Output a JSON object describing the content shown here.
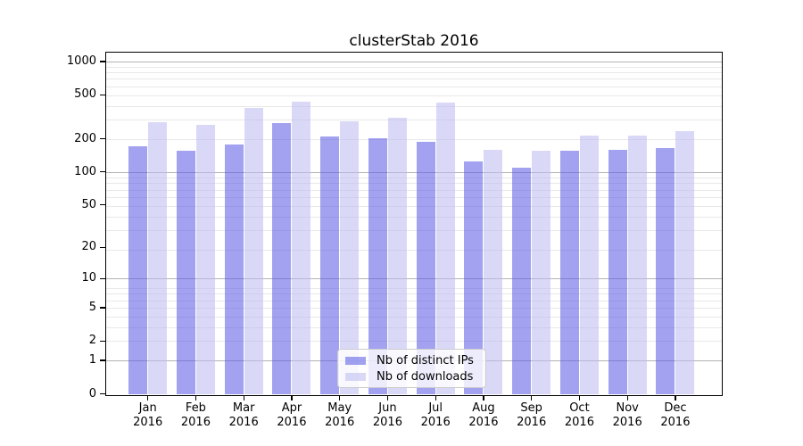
{
  "chart_data": {
    "type": "bar",
    "title": "clusterStab 2016",
    "categories": [
      "Jan 2016",
      "Feb 2016",
      "Mar 2016",
      "Apr 2016",
      "May 2016",
      "Jun 2016",
      "Jul 2016",
      "Aug 2016",
      "Sep 2016",
      "Oct 2016",
      "Nov 2016",
      "Dec 2016"
    ],
    "series": [
      {
        "name": "Nb of distinct IPs",
        "color_on_white": "#a2a2ef",
        "color_rgba": "rgba(92,92,228,0.57)",
        "values": [
          171,
          155,
          179,
          280,
          210,
          201,
          189,
          125,
          109,
          155,
          159,
          164
        ]
      },
      {
        "name": "Nb of downloads",
        "color_on_white": "#d9d9f7",
        "color_rgba": "rgba(188,188,241,0.57)",
        "values": [
          282,
          268,
          378,
          432,
          291,
          309,
          430,
          158,
          157,
          213,
          215,
          236
        ]
      }
    ],
    "yscale": "log10(1+y)",
    "yticks": [
      0,
      1,
      2,
      5,
      10,
      20,
      50,
      100,
      200,
      500,
      1000
    ],
    "major_gridlines": [
      1,
      10,
      100,
      1000
    ],
    "ylim": [
      0,
      1270
    ],
    "grid": true,
    "legend_position": "lower center",
    "colors": {
      "major_grid": "#b2b2b2",
      "minor_grid": "#e8e8e8",
      "axes": "#000000",
      "text": "#000000",
      "background": "#ffffff"
    }
  }
}
